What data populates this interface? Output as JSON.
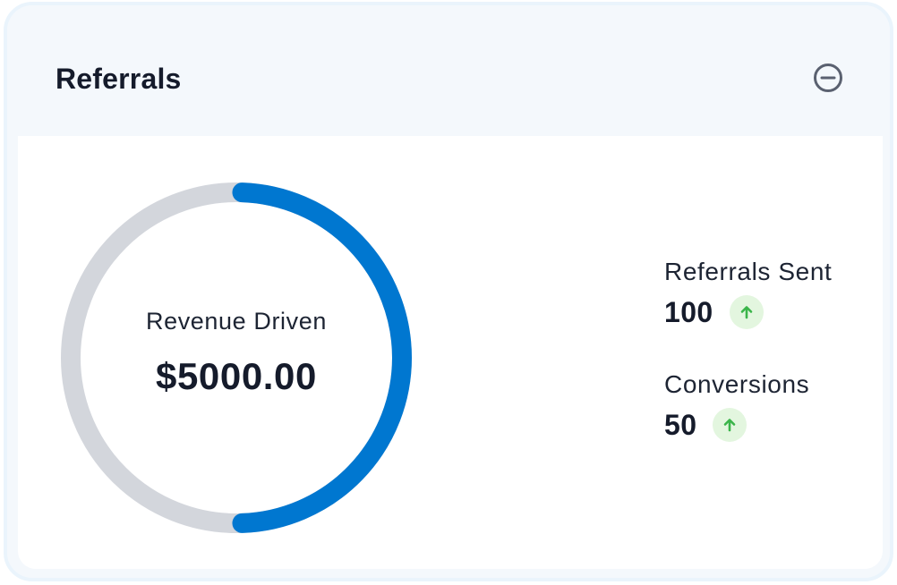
{
  "card": {
    "title": "Referrals",
    "collapse_icon": "minus-circle-icon"
  },
  "revenue": {
    "label": "Revenue Driven",
    "value": "$5000.00",
    "progress_fraction": 0.5,
    "progress_color": "#0077d0",
    "track_color": "#d3d6dc"
  },
  "stats": [
    {
      "label": "Referrals Sent",
      "value": "100",
      "trend_icon": "arrow-up-icon",
      "trend_color": "#3bb54a"
    },
    {
      "label": "Conversions",
      "value": "50",
      "trend_icon": "arrow-up-icon",
      "trend_color": "#3bb54a"
    }
  ]
}
